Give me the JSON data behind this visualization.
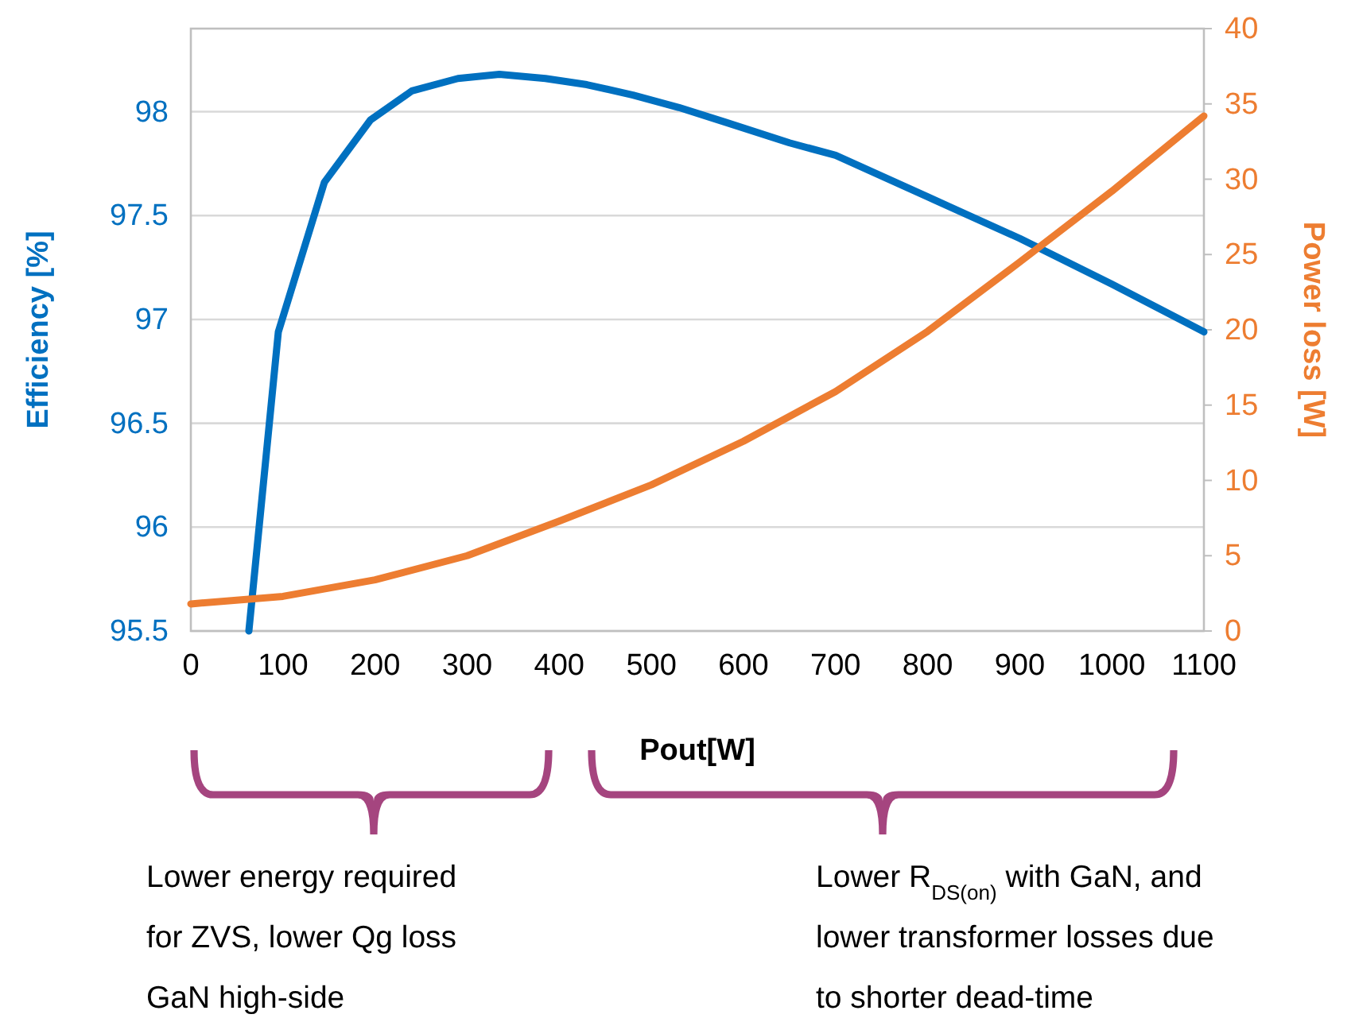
{
  "chart_data": {
    "type": "line",
    "xlabel": "Pout[W]",
    "ylabel": "Efficiency [%]",
    "y2label": "Power loss [W]",
    "xlim": [
      0,
      1100
    ],
    "xticks": [
      0,
      100,
      200,
      300,
      400,
      500,
      600,
      700,
      800,
      900,
      1000,
      1100
    ],
    "ylim": [
      95.5,
      98.4
    ],
    "yticks": [
      95.5,
      96,
      96.5,
      97,
      97.5,
      98
    ],
    "y2lim": [
      0,
      40
    ],
    "y2ticks": [
      0,
      5,
      10,
      15,
      20,
      25,
      30,
      35,
      40
    ],
    "grid": "y",
    "marker": "none",
    "line_style": "solid",
    "series": [
      {
        "color": "#0070c0",
        "x": [
          63,
          95,
          145,
          195,
          240,
          290,
          335,
          385,
          430,
          480,
          530,
          580,
          650,
          700,
          800,
          900,
          1000,
          1100
        ],
        "values": [
          95.5,
          96.94,
          97.66,
          97.96,
          98.1,
          98.16,
          98.18,
          98.16,
          98.13,
          98.08,
          98.02,
          97.95,
          97.85,
          97.79,
          97.59,
          97.39,
          97.17,
          96.94
        ]
      },
      {
        "color": "#ed7d31",
        "axis": "y2",
        "x": [
          0,
          100,
          200,
          300,
          400,
          500,
          600,
          700,
          800,
          900,
          1000,
          1100
        ],
        "values": [
          1.8,
          2.3,
          3.4,
          5.0,
          7.3,
          9.7,
          12.6,
          15.9,
          19.9,
          24.5,
          29.2,
          34.2
        ]
      }
    ],
    "annotations": [
      "Lower energy required",
      "for ZVS, lower Qg loss",
      "GaN high-side",
      "Lower R$_{DS(on)}$ with GaN, and",
      "lower transformer losses due",
      "to shorter dead-time"
    ]
  }
}
